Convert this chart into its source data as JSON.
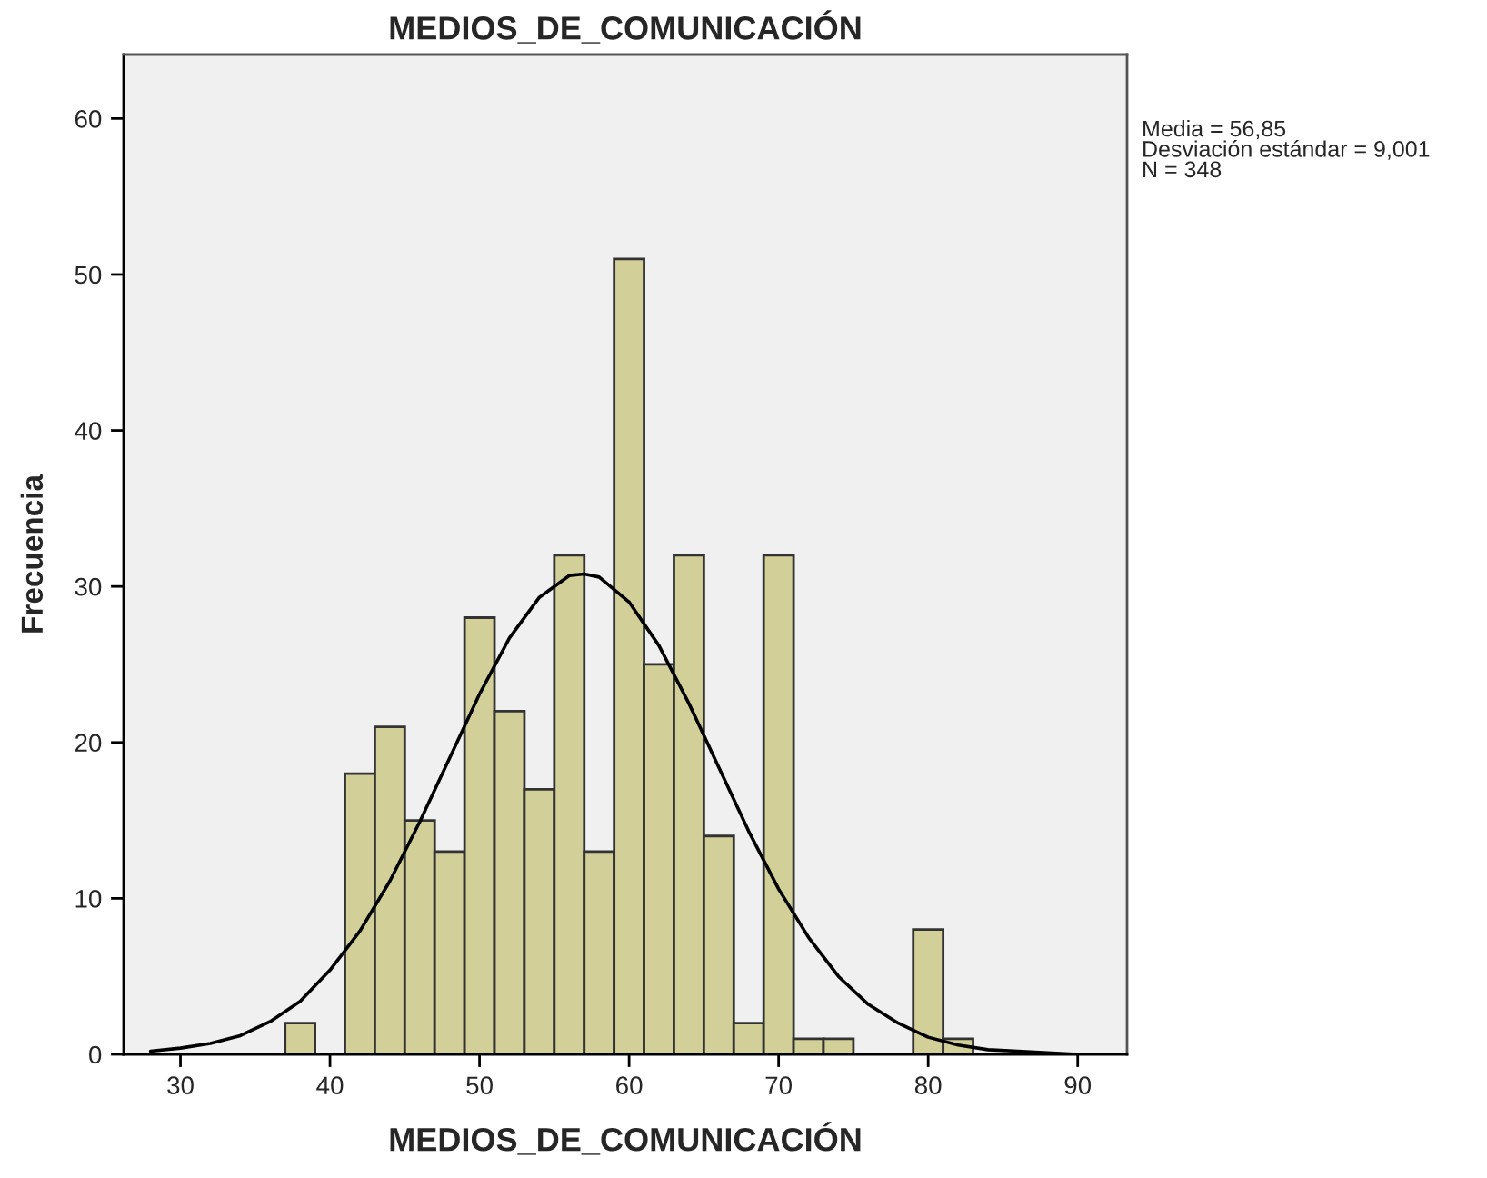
{
  "chart_data": {
    "type": "histogram",
    "title": "MEDIOS_DE_COMUNICACIÓN",
    "xlabel": "MEDIOS_DE_COMUNICACIÓN",
    "ylabel": "Frecuencia",
    "bins": [
      37,
      39,
      41,
      43,
      45,
      47,
      49,
      51,
      53,
      55,
      57,
      59,
      61,
      63,
      65,
      67,
      69,
      71,
      73,
      75,
      77,
      79,
      81,
      83
    ],
    "values": [
      2,
      0,
      18,
      21,
      15,
      13,
      28,
      22,
      17,
      32,
      13,
      51,
      25,
      32,
      14,
      2,
      32,
      1,
      1,
      0,
      0,
      8,
      1
    ],
    "color": "#d3cf98",
    "series": [
      {
        "type": "line",
        "color": "#000000",
        "x": [
          28,
          30,
          32,
          34,
          36,
          38,
          40,
          42,
          44,
          46,
          48,
          50,
          52,
          54,
          56,
          57,
          58,
          60,
          62,
          64,
          66,
          68,
          70,
          72,
          74,
          76,
          78,
          80,
          82,
          84,
          86,
          88,
          90,
          92
        ],
        "values": [
          0.2,
          0.4,
          0.7,
          1.2,
          2.1,
          3.4,
          5.4,
          7.9,
          11.1,
          14.9,
          19,
          23.1,
          26.7,
          29.3,
          30.7,
          30.8,
          30.6,
          29,
          26.2,
          22.5,
          18.4,
          14.3,
          10.6,
          7.5,
          5,
          3.2,
          2,
          1.1,
          0.6,
          0.3,
          0.2,
          0.1,
          0,
          0
        ]
      }
    ],
    "annotations": [
      "Media = 56,85\nDesviación estándar = 9,001\nN = 348"
    ],
    "xlim": [
      26.2,
      93.3
    ],
    "ylim": [
      0,
      64.1
    ],
    "xticks": [
      30,
      40,
      50,
      60,
      70,
      80,
      90
    ],
    "yticks": [
      0,
      10,
      20,
      30,
      40,
      50,
      60
    ],
    "grid": false
  }
}
